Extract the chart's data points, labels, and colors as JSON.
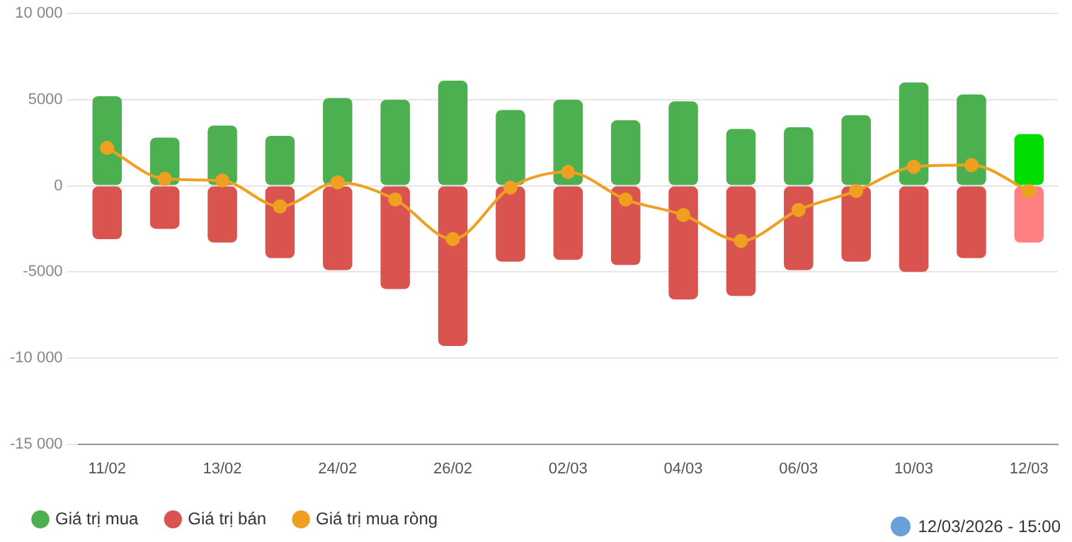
{
  "chart_data": {
    "type": "bar",
    "stacked": true,
    "categories": [
      "11/02",
      null,
      "13/02",
      null,
      "24/02",
      null,
      "26/02",
      null,
      "02/03",
      null,
      "04/03",
      null,
      "06/03",
      null,
      "10/03",
      null,
      "12/03"
    ],
    "series": [
      {
        "name": "Giá trị mua",
        "color": "#4caf50",
        "colors": [
          "#4caf50",
          "#4caf50",
          "#4caf50",
          "#4caf50",
          "#4caf50",
          "#4caf50",
          "#4caf50",
          "#4caf50",
          "#4caf50",
          "#4caf50",
          "#4caf50",
          "#4caf50",
          "#4caf50",
          "#4caf50",
          "#4caf50",
          "#4caf50",
          "#00dd00"
        ],
        "values": [
          5200,
          2800,
          3500,
          2900,
          5100,
          5000,
          6100,
          4400,
          5000,
          3800,
          4900,
          3300,
          3400,
          4100,
          6000,
          5300,
          3000
        ]
      },
      {
        "name": "Giá trị bán",
        "color": "#d9534f",
        "colors": [
          "#d9534f",
          "#d9534f",
          "#d9534f",
          "#d9534f",
          "#d9534f",
          "#d9534f",
          "#d9534f",
          "#d9534f",
          "#d9534f",
          "#d9534f",
          "#d9534f",
          "#d9534f",
          "#d9534f",
          "#d9534f",
          "#d9534f",
          "#d9534f",
          "#ff8080"
        ],
        "values": [
          -3100,
          -2500,
          -3300,
          -4200,
          -4900,
          -6000,
          -9300,
          -4400,
          -4300,
          -4600,
          -6600,
          -6400,
          -4900,
          -4400,
          -5000,
          -4200,
          -3300
        ]
      },
      {
        "name": "Giá trị mua ròng",
        "type": "line",
        "color": "#f0a020",
        "values": [
          2200,
          400,
          300,
          -1200,
          200,
          -800,
          -3100,
          -100,
          800,
          -800,
          -1700,
          -3200,
          -1400,
          -300,
          1100,
          1200,
          -300
        ]
      }
    ],
    "ylim": [
      -15000,
      10000
    ],
    "yticks": [
      {
        "value": -15000,
        "label": "-15 000"
      },
      {
        "value": -10000,
        "label": "-10 000"
      },
      {
        "value": -5000,
        "label": "-5000"
      },
      0,
      {
        "value": 5000,
        "label": "5000"
      },
      {
        "value": 10000,
        "label": "10 000"
      }
    ],
    "grid": "y",
    "legend": "bottom left",
    "marker": "circle",
    "line_style": "solid",
    "annotations": [
      "12/03/2026 - 15:00"
    ]
  }
}
